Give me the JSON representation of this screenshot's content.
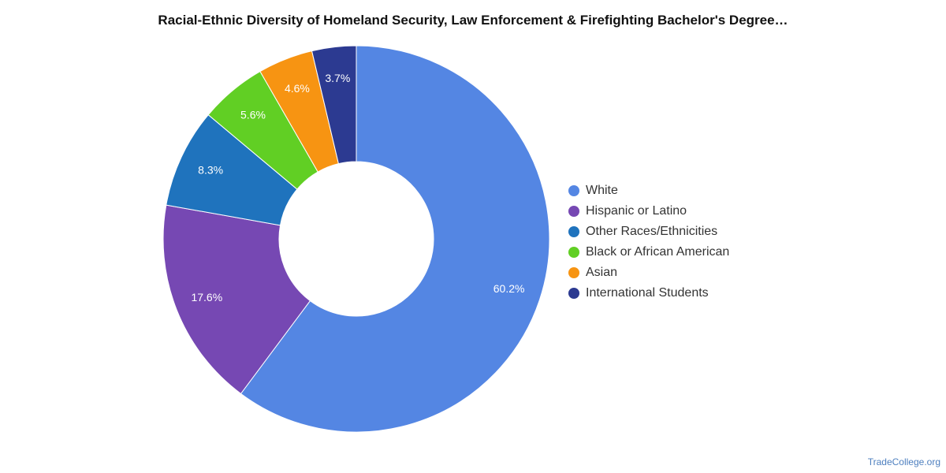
{
  "chart_data": {
    "type": "pie",
    "donut": true,
    "title": "Racial-Ethnic Diversity of Homeland Security, Law Enforcement & Firefighting Bachelor's Degree…",
    "categories": [
      "White",
      "Hispanic or Latino",
      "Other Races/Ethnicities",
      "Black or African American",
      "Asian",
      "International Students"
    ],
    "values": [
      60.2,
      17.6,
      8.3,
      5.6,
      4.6,
      3.7
    ],
    "labels": [
      "60.2%",
      "17.6%",
      "8.3%",
      "5.6%",
      "4.6%",
      "3.7%"
    ],
    "colors": [
      "#5486e3",
      "#7648b3",
      "#1f73bd",
      "#61cf24",
      "#f79412",
      "#2c3a91"
    ],
    "legend_position": "right"
  },
  "footer": {
    "source": "TradeCollege.org"
  }
}
